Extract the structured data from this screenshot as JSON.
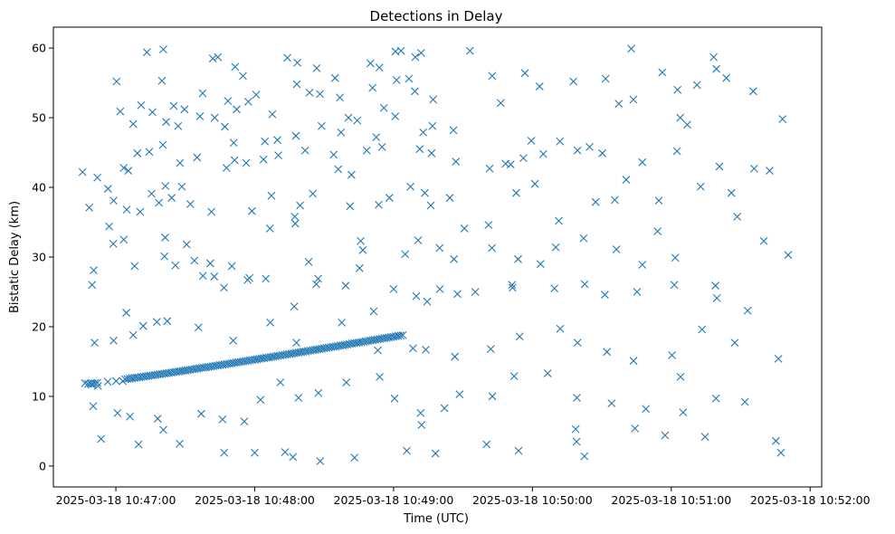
{
  "chart_data": {
    "type": "scatter",
    "title": "Detections in Delay",
    "xlabel": "Time (UTC)",
    "ylabel": "Bistatic Delay (km)",
    "marker": "x",
    "color": "#1f77b4",
    "x_unit": "seconds after 2025-03-18 10:46:00 UTC",
    "xlim": [
      33,
      365
    ],
    "ylim": [
      -3,
      63
    ],
    "x_ticks": [
      {
        "value": 60,
        "label": "2025-03-18 10:47:00"
      },
      {
        "value": 120,
        "label": "2025-03-18 10:48:00"
      },
      {
        "value": 180,
        "label": "2025-03-18 10:49:00"
      },
      {
        "value": 240,
        "label": "2025-03-18 10:50:00"
      },
      {
        "value": 300,
        "label": "2025-03-18 10:51:00"
      },
      {
        "value": 360,
        "label": "2025-03-18 10:52:00"
      }
    ],
    "y_ticks": [
      {
        "value": 0,
        "label": "0"
      },
      {
        "value": 10,
        "label": "10"
      },
      {
        "value": 20,
        "label": "20"
      },
      {
        "value": 30,
        "label": "30"
      },
      {
        "value": 40,
        "label": "40"
      },
      {
        "value": 50,
        "label": "50"
      },
      {
        "value": 60,
        "label": "60"
      }
    ],
    "grid": false,
    "track": {
      "start": [
        48,
        11.8
      ],
      "end": [
        184,
        18.8
      ],
      "gap_start": 52,
      "gap_end": 64,
      "spacing": 1
    },
    "points": [
      [
        73.4,
        59.4
      ],
      [
        80.5,
        59.8
      ],
      [
        101.9,
        58.5
      ],
      [
        104.1,
        58.7
      ],
      [
        111.5,
        57.3
      ],
      [
        114.9,
        56.0
      ],
      [
        134.1,
        58.6
      ],
      [
        138.4,
        57.9
      ],
      [
        154.7,
        55.7
      ],
      [
        156.8,
        52.9
      ],
      [
        170.0,
        57.8
      ],
      [
        173.9,
        57.2
      ],
      [
        180.8,
        59.5
      ],
      [
        183.2,
        59.6
      ],
      [
        189.4,
        58.7
      ],
      [
        191.9,
        59.3
      ],
      [
        213.0,
        59.6
      ],
      [
        282.7,
        59.9
      ],
      [
        318.3,
        58.7
      ],
      [
        319.5,
        57.0
      ],
      [
        323.8,
        55.7
      ],
      [
        60.3,
        55.2
      ],
      [
        79.9,
        55.3
      ],
      [
        85.0,
        51.7
      ],
      [
        89.6,
        51.2
      ],
      [
        97.5,
        53.5
      ],
      [
        102.7,
        50.0
      ],
      [
        112.2,
        51.2
      ],
      [
        117.2,
        52.3
      ],
      [
        120.6,
        53.3
      ],
      [
        127.6,
        50.5
      ],
      [
        138.2,
        54.8
      ],
      [
        143.7,
        53.6
      ],
      [
        148.2,
        53.4
      ],
      [
        160.5,
        50.0
      ],
      [
        170.9,
        54.3
      ],
      [
        175.8,
        51.4
      ],
      [
        181.3,
        55.4
      ],
      [
        186.6,
        55.6
      ],
      [
        189.2,
        53.8
      ],
      [
        197.1,
        52.6
      ],
      [
        222.6,
        56.0
      ],
      [
        226.3,
        52.1
      ],
      [
        236.8,
        56.4
      ],
      [
        243.1,
        54.5
      ],
      [
        257.7,
        55.2
      ],
      [
        271.6,
        55.6
      ],
      [
        277.3,
        52.0
      ],
      [
        283.6,
        52.6
      ],
      [
        296.1,
        56.5
      ],
      [
        302.7,
        54.0
      ],
      [
        311.1,
        54.7
      ],
      [
        335.4,
        53.8
      ],
      [
        348.1,
        49.8
      ],
      [
        61.9,
        50.9
      ],
      [
        67.5,
        49.1
      ],
      [
        70.9,
        51.8
      ],
      [
        75.8,
        50.8
      ],
      [
        81.7,
        49.4
      ],
      [
        86.9,
        48.8
      ],
      [
        96.3,
        50.2
      ],
      [
        107.1,
        48.7
      ],
      [
        110.9,
        46.4
      ],
      [
        124.4,
        46.6
      ],
      [
        129.8,
        46.8
      ],
      [
        137.8,
        47.4
      ],
      [
        148.9,
        48.8
      ],
      [
        157.3,
        47.9
      ],
      [
        164.3,
        49.6
      ],
      [
        172.5,
        47.2
      ],
      [
        180.7,
        50.2
      ],
      [
        192.8,
        47.9
      ],
      [
        196.8,
        48.8
      ],
      [
        205.9,
        48.2
      ],
      [
        228.4,
        43.4
      ],
      [
        236.1,
        44.2
      ],
      [
        239.5,
        46.7
      ],
      [
        251.9,
        46.6
      ],
      [
        264.7,
        45.8
      ],
      [
        303.9,
        50.0
      ],
      [
        306.9,
        49.0
      ],
      [
        65.4,
        42.4
      ],
      [
        69.3,
        44.9
      ],
      [
        74.4,
        45.1
      ],
      [
        80.3,
        46.1
      ],
      [
        87.7,
        43.5
      ],
      [
        95.1,
        44.3
      ],
      [
        111.3,
        43.9
      ],
      [
        116.3,
        43.5
      ],
      [
        123.8,
        44.0
      ],
      [
        130.2,
        44.6
      ],
      [
        141.8,
        45.3
      ],
      [
        154.1,
        44.7
      ],
      [
        168.4,
        45.3
      ],
      [
        175.0,
        45.8
      ],
      [
        191.3,
        45.5
      ],
      [
        196.4,
        44.9
      ],
      [
        206.9,
        43.7
      ],
      [
        221.5,
        42.7
      ],
      [
        230.6,
        43.3
      ],
      [
        244.7,
        44.8
      ],
      [
        259.5,
        45.3
      ],
      [
        270.2,
        44.9
      ],
      [
        287.5,
        43.6
      ],
      [
        302.5,
        45.2
      ],
      [
        320.8,
        43.0
      ],
      [
        335.8,
        42.7
      ],
      [
        45.6,
        42.2
      ],
      [
        48.5,
        37.1
      ],
      [
        52.0,
        41.4
      ],
      [
        56.6,
        39.8
      ],
      [
        59.0,
        38.1
      ],
      [
        63.4,
        42.8
      ],
      [
        64.7,
        36.8
      ],
      [
        75.4,
        39.1
      ],
      [
        78.6,
        37.8
      ],
      [
        81.4,
        40.2
      ],
      [
        84.1,
        38.5
      ],
      [
        88.5,
        40.1
      ],
      [
        92.2,
        37.6
      ],
      [
        101.3,
        36.5
      ],
      [
        107.8,
        42.8
      ],
      [
        118.8,
        36.6
      ],
      [
        127.2,
        38.8
      ],
      [
        137.3,
        35.8
      ],
      [
        139.6,
        37.4
      ],
      [
        145.1,
        39.1
      ],
      [
        156.1,
        42.6
      ],
      [
        161.8,
        41.8
      ],
      [
        173.6,
        37.5
      ],
      [
        178.2,
        38.5
      ],
      [
        187.3,
        40.1
      ],
      [
        193.5,
        39.2
      ],
      [
        196.1,
        37.4
      ],
      [
        204.3,
        38.5
      ],
      [
        210.6,
        34.1
      ],
      [
        221.0,
        34.6
      ],
      [
        233.0,
        39.2
      ],
      [
        251.4,
        35.2
      ],
      [
        267.3,
        37.9
      ],
      [
        275.6,
        38.2
      ],
      [
        294.6,
        38.1
      ],
      [
        312.7,
        40.1
      ],
      [
        326.0,
        39.2
      ],
      [
        342.5,
        42.4
      ],
      [
        57.1,
        34.4
      ],
      [
        63.4,
        32.5
      ],
      [
        70.5,
        36.5
      ],
      [
        81.3,
        32.8
      ],
      [
        90.6,
        31.8
      ],
      [
        93.9,
        29.5
      ],
      [
        100.8,
        29.1
      ],
      [
        102.5,
        27.2
      ],
      [
        110.1,
        28.7
      ],
      [
        116.9,
        26.7
      ],
      [
        126.6,
        34.1
      ],
      [
        137.5,
        34.8
      ],
      [
        143.3,
        29.3
      ],
      [
        146.6,
        26.1
      ],
      [
        165.3,
        28.4
      ],
      [
        166.7,
        31.0
      ],
      [
        185.0,
        30.4
      ],
      [
        190.6,
        32.4
      ],
      [
        199.9,
        31.3
      ],
      [
        206.1,
        29.7
      ],
      [
        222.5,
        31.3
      ],
      [
        233.8,
        29.7
      ],
      [
        250.1,
        31.4
      ],
      [
        262.1,
        32.7
      ],
      [
        276.3,
        31.1
      ],
      [
        287.5,
        28.9
      ],
      [
        301.7,
        29.9
      ],
      [
        319.1,
        25.9
      ],
      [
        328.5,
        35.8
      ],
      [
        340.0,
        32.3
      ],
      [
        350.5,
        30.3
      ],
      [
        49.7,
        26.0
      ],
      [
        50.4,
        28.1
      ],
      [
        58.9,
        31.9
      ],
      [
        68.1,
        28.7
      ],
      [
        81.0,
        30.1
      ],
      [
        85.7,
        28.8
      ],
      [
        97.6,
        27.3
      ],
      [
        106.7,
        25.6
      ],
      [
        117.7,
        27.0
      ],
      [
        124.8,
        26.9
      ],
      [
        137.1,
        22.9
      ],
      [
        147.4,
        26.9
      ],
      [
        159.3,
        25.9
      ],
      [
        171.4,
        22.2
      ],
      [
        180.0,
        25.4
      ],
      [
        189.8,
        24.4
      ],
      [
        194.5,
        23.6
      ],
      [
        200.0,
        25.4
      ],
      [
        207.6,
        24.7
      ],
      [
        215.3,
        25.0
      ],
      [
        231.2,
        26.0
      ],
      [
        249.5,
        25.5
      ],
      [
        262.6,
        26.1
      ],
      [
        271.3,
        24.6
      ],
      [
        285.2,
        25.0
      ],
      [
        301.3,
        26.0
      ],
      [
        319.7,
        24.1
      ],
      [
        333.0,
        22.3
      ],
      [
        50.8,
        17.7
      ],
      [
        59.0,
        18.0
      ],
      [
        64.5,
        22.0
      ],
      [
        67.5,
        18.8
      ],
      [
        71.8,
        20.1
      ],
      [
        77.7,
        20.7
      ],
      [
        82.2,
        20.8
      ],
      [
        95.7,
        19.9
      ],
      [
        110.7,
        18.0
      ],
      [
        126.7,
        20.6
      ],
      [
        138.0,
        17.7
      ],
      [
        157.6,
        20.6
      ],
      [
        173.2,
        16.6
      ],
      [
        188.4,
        16.9
      ],
      [
        193.9,
        16.7
      ],
      [
        206.5,
        15.7
      ],
      [
        222.0,
        16.8
      ],
      [
        234.5,
        18.6
      ],
      [
        252.0,
        19.7
      ],
      [
        259.5,
        17.7
      ],
      [
        272.2,
        16.4
      ],
      [
        283.7,
        15.1
      ],
      [
        300.3,
        15.9
      ],
      [
        313.3,
        19.6
      ],
      [
        327.4,
        17.7
      ],
      [
        346.3,
        15.4
      ],
      [
        50.2,
        8.6
      ],
      [
        53.6,
        3.9
      ],
      [
        60.7,
        7.6
      ],
      [
        66.1,
        7.1
      ],
      [
        69.8,
        3.1
      ],
      [
        78.1,
        6.8
      ],
      [
        80.5,
        5.2
      ],
      [
        87.6,
        3.2
      ],
      [
        96.9,
        7.5
      ],
      [
        106.1,
        6.7
      ],
      [
        115.5,
        6.4
      ],
      [
        122.5,
        9.5
      ],
      [
        131.1,
        12.0
      ],
      [
        138.9,
        9.8
      ],
      [
        147.5,
        10.5
      ],
      [
        159.6,
        12.0
      ],
      [
        174.0,
        12.8
      ],
      [
        180.4,
        9.7
      ],
      [
        191.7,
        7.6
      ],
      [
        202.0,
        8.3
      ],
      [
        208.5,
        10.3
      ],
      [
        222.7,
        10.0
      ],
      [
        232.1,
        12.9
      ],
      [
        246.6,
        13.3
      ],
      [
        259.2,
        9.8
      ],
      [
        274.2,
        9.0
      ],
      [
        289.0,
        8.2
      ],
      [
        304.0,
        12.8
      ],
      [
        319.3,
        9.7
      ],
      [
        331.8,
        9.2
      ],
      [
        46.7,
        11.9
      ],
      [
        49.6,
        11.7
      ],
      [
        52.3,
        11.5
      ],
      [
        56.5,
        12.1
      ],
      [
        60.1,
        12.2
      ],
      [
        63.0,
        12.2
      ],
      [
        106.8,
        1.9
      ],
      [
        120.0,
        1.9
      ],
      [
        133.1,
        2.0
      ],
      [
        136.5,
        1.3
      ],
      [
        148.3,
        0.7
      ],
      [
        163.1,
        1.2
      ],
      [
        185.7,
        2.2
      ],
      [
        198.1,
        1.8
      ],
      [
        220.2,
        3.1
      ],
      [
        234.0,
        2.2
      ],
      [
        259.1,
        3.5
      ],
      [
        262.5,
        1.4
      ],
      [
        284.3,
        5.4
      ],
      [
        297.3,
        4.4
      ],
      [
        314.6,
        4.2
      ],
      [
        345.2,
        3.6
      ],
      [
        347.4,
        1.9
      ],
      [
        161.2,
        37.3
      ],
      [
        165.8,
        32.3
      ],
      [
        231.4,
        25.6
      ],
      [
        243.5,
        29.0
      ],
      [
        280.5,
        41.1
      ],
      [
        294.1,
        33.7
      ],
      [
        258.7,
        5.3
      ],
      [
        192.1,
        5.9
      ],
      [
        108.4,
        52.4
      ],
      [
        146.8,
        57.1
      ],
      [
        241.1,
        40.5
      ],
      [
        305.1,
        7.7
      ]
    ]
  }
}
